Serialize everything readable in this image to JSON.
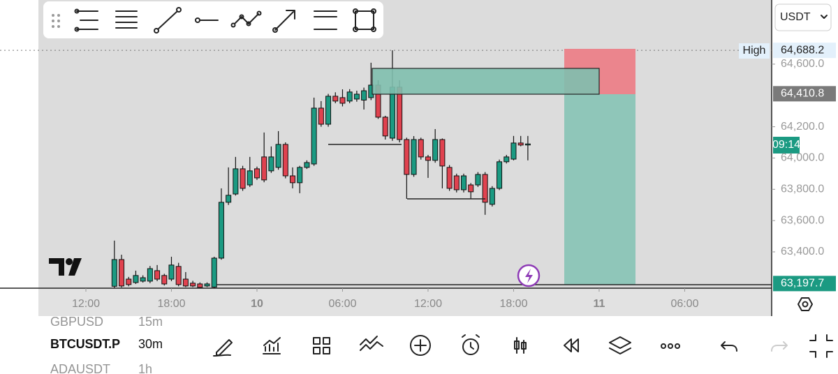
{
  "chart_data": {
    "type": "candlestick",
    "x": [
      14,
      14.5,
      15,
      15.5,
      16,
      16.5,
      17,
      17.5,
      18,
      18.5,
      19,
      19.5,
      20,
      20.5,
      21,
      21.5,
      22,
      22.5,
      23,
      23.5,
      24,
      24.5,
      25,
      25.5,
      26,
      26.5,
      27,
      27.5,
      28,
      28.5,
      29,
      29.5,
      30,
      30.5,
      31,
      31.5,
      32,
      32.5,
      33,
      33.5,
      34,
      34.5,
      35,
      35.5,
      36,
      36.5,
      37,
      37.5,
      38,
      38.5,
      39,
      39.5,
      40,
      40.5,
      41,
      41.5,
      42,
      42.5,
      43
    ],
    "open": [
      63180,
      63351,
      63226,
      63204,
      63213,
      63213,
      63280,
      63249,
      63226,
      63307,
      63226,
      63200,
      63195,
      63182,
      63175,
      63360,
      63717,
      63770,
      63931,
      63828,
      63931,
      64007,
      63918,
      63940,
      64087,
      63886,
      63842,
      63940,
      63962,
      64319,
      64216,
      64395,
      64386,
      64364,
      64377,
      64370,
      64386,
      64466,
      64261,
      64127,
      64453,
      64118,
      63895,
      64118,
      64007,
      63985,
      64118,
      63940,
      63886,
      63797,
      63828,
      63828,
      63895,
      63704,
      63806,
      63976,
      63993,
      64096,
      64087
    ],
    "high": [
      63472,
      63382,
      63240,
      63280,
      63250,
      63310,
      63316,
      63260,
      63369,
      63330,
      63271,
      63215,
      63205,
      63205,
      63369,
      63806,
      63940,
      64007,
      63950,
      64007,
      63945,
      64163,
      64074,
      64172,
      64100,
      63940,
      63950,
      63985,
      64386,
      64364,
      64410,
      64420,
      64439,
      64440,
      64430,
      64450,
      64609,
      64497,
      64270,
      64688.2,
      64497,
      64130,
      64140,
      64130,
      64020,
      64185,
      64125,
      63955,
      63900,
      63900,
      63840,
      63910,
      63910,
      63820,
      63990,
      64020,
      64141,
      64141,
      64141
    ],
    "low": [
      63170,
      63173,
      63180,
      63195,
      63204,
      63200,
      63213,
      63185,
      63213,
      63180,
      63175,
      63175,
      63170,
      63175,
      63170,
      63350,
      63700,
      63760,
      63790,
      63815,
      63860,
      63845,
      63905,
      63925,
      63870,
      63806,
      63775,
      63930,
      63950,
      64200,
      64200,
      64350,
      64330,
      64350,
      64360,
      64310,
      64370,
      64250,
      64118,
      64110,
      64100,
      63739,
      63880,
      63990,
      63873,
      63970,
      63806,
      63790,
      63780,
      63780,
      63739,
      63815,
      63637,
      63690,
      63795,
      63965,
      63985,
      64075,
      63985
    ],
    "close": [
      63351,
      63182,
      63191,
      63249,
      63235,
      63293,
      63226,
      63195,
      63316,
      63191,
      63182,
      63182,
      63173,
      63195,
      63360,
      63717,
      63762,
      63931,
      63806,
      63918,
      63873,
      63860,
      64007,
      64087,
      63886,
      63842,
      63940,
      63971,
      64319,
      64216,
      64395,
      64364,
      64350,
      64422,
      64408,
      64430,
      64466,
      64261,
      64141,
      64453,
      64118,
      63895,
      64118,
      64007,
      63985,
      64118,
      63949,
      63806,
      63797,
      63886,
      63784,
      63895,
      63717,
      63806,
      63976,
      64007,
      64096,
      64083,
      64090
    ],
    "up_color": "#1b9a82",
    "down_color": "#e0424f",
    "ylim": [
      63168,
      65010
    ],
    "yticks": [
      {
        "value": 63400,
        "label": "63,400.0"
      },
      {
        "value": 63600,
        "label": "63,600.0"
      },
      {
        "value": 63800,
        "label": "63,800.0"
      },
      {
        "value": 64000,
        "label": "64,000.0"
      },
      {
        "value": 64200,
        "label": "64,200.0"
      },
      {
        "value": 64600,
        "label": "64,600.0"
      }
    ],
    "xlim": [
      8.67,
      60.1
    ],
    "xticks": [
      {
        "value": 12,
        "label": "12:00"
      },
      {
        "value": 18,
        "label": "18:00"
      },
      {
        "value": 24,
        "label": "10"
      },
      {
        "value": 30,
        "label": "06:00"
      },
      {
        "value": 36,
        "label": "12:00"
      },
      {
        "value": 42,
        "label": "18:00"
      },
      {
        "value": 48,
        "label": "11"
      },
      {
        "value": 54,
        "label": "06:00"
      }
    ],
    "price_markers": [
      {
        "value": 64688.2,
        "label": "64,688.2",
        "color": "#e3f0fb",
        "text_color": "#222"
      },
      {
        "value": 64410.8,
        "label": "64,410.8",
        "color": "#7a7a7a",
        "text_color": "#fff"
      },
      {
        "value": 63197.7,
        "label": "63,197.7",
        "color": "#1b9a82",
        "text_color": "#fff"
      }
    ],
    "high_label": "High",
    "countdown": "09:14",
    "currency": "USDT"
  },
  "symbols": [
    {
      "name": "GBPUSD",
      "interval": "15m"
    },
    {
      "name": "BTCUSDT.P",
      "interval": "30m"
    },
    {
      "name": "ADAUSDT",
      "interval": "1h"
    }
  ]
}
